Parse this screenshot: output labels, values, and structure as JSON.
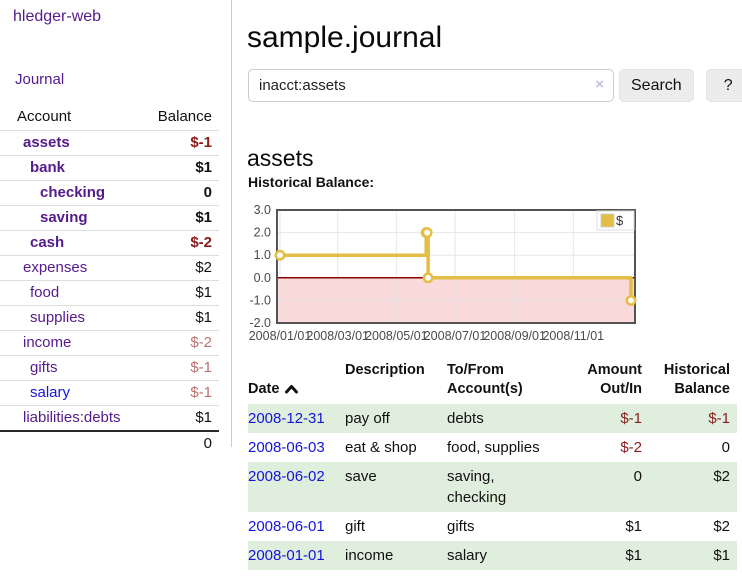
{
  "sidebar": {
    "app_title": "hledger-web",
    "journal_label": "Journal",
    "accounts_table": {
      "account_header": "Account",
      "balance_header": "Balance",
      "rows": [
        {
          "name": "assets",
          "indent": 1,
          "bold": true,
          "balance": "$-1",
          "balance_style": "neg"
        },
        {
          "name": "bank",
          "indent": 2,
          "bold": true,
          "balance": "$1",
          "balance_style": ""
        },
        {
          "name": "checking",
          "indent": 3,
          "bold": true,
          "balance": "0",
          "balance_style": ""
        },
        {
          "name": "saving",
          "indent": 3,
          "bold": true,
          "balance": "$1",
          "balance_style": ""
        },
        {
          "name": "cash",
          "indent": 2,
          "bold": true,
          "balance": "$-2",
          "balance_style": "neg"
        },
        {
          "name": "expenses",
          "indent": 1,
          "bold": false,
          "balance": "$2",
          "balance_style": ""
        },
        {
          "name": "food",
          "indent": 2,
          "bold": false,
          "balance": "$1",
          "balance_style": ""
        },
        {
          "name": "supplies",
          "indent": 2,
          "bold": false,
          "balance": "$1",
          "balance_style": ""
        },
        {
          "name": "income",
          "indent": 1,
          "bold": false,
          "balance": "$-2",
          "balance_style": "neg-soft"
        },
        {
          "name": "gifts",
          "indent": 2,
          "bold": false,
          "balance": "$-1",
          "balance_style": "neg-soft"
        },
        {
          "name": "salary",
          "indent": 2,
          "bold": false,
          "balance": "$-1",
          "balance_style": "neg-soft",
          "link": "blue"
        },
        {
          "name": "liabilities:debts",
          "indent": 1,
          "bold": false,
          "balance": "$1",
          "balance_style": ""
        }
      ],
      "total": "0"
    }
  },
  "main": {
    "title": "sample.journal",
    "search": {
      "value": "inacct:assets",
      "clear_icon": "×",
      "search_label": "Search",
      "help_label": "?"
    },
    "account_heading": "assets",
    "chart_label": "Historical Balance:"
  },
  "chart_data": {
    "type": "line",
    "step": true,
    "title": "Historical Balance",
    "series": [
      {
        "name": "$",
        "color": "#e4bd45",
        "points": [
          [
            "2008-01-01",
            1
          ],
          [
            "2008-06-01",
            2
          ],
          [
            "2008-06-02",
            2
          ],
          [
            "2008-06-03",
            0
          ],
          [
            "2008-12-31",
            -1
          ]
        ]
      }
    ],
    "x_range": [
      "2008-01-01",
      "2008-12-31"
    ],
    "ylim": [
      -2,
      3
    ],
    "y_tick_labels": [
      "3.0",
      "2.0",
      "1.0",
      "0.0",
      "-1.0",
      "-2.0"
    ],
    "x_tick_labels": [
      "2008/01/01",
      "2008/03/01",
      "2008/05/01",
      "2008/07/01",
      "2008/09/01",
      "2008/11/01"
    ],
    "x_tick_dates": [
      "2008-01-01",
      "2008-03-01",
      "2008-05-01",
      "2008-07-01",
      "2008-09-01",
      "2008-11-01"
    ],
    "legend_position": "top-right",
    "grid_on": true,
    "colors": {
      "negative_region": "#f9d9d9",
      "zero_line": "#8b0000",
      "grid": "#e6e6e6",
      "border": "#545454",
      "tick_text": "#4a4a4a"
    }
  },
  "register_table": {
    "headers": {
      "date": "Date",
      "description": "Description",
      "accounts": "To/From\nAccount(s)",
      "amount": "Amount\nOut/In",
      "balance": "Historical\nBalance"
    },
    "rows": [
      {
        "date": "2008-12-31",
        "description": "pay off",
        "accounts": "debts",
        "amount": "$-1",
        "amount_style": "neg",
        "balance": "$-1",
        "balance_style": "neg"
      },
      {
        "date": "2008-06-03",
        "description": "eat & shop",
        "accounts": "food, supplies",
        "amount": "$-2",
        "amount_style": "neg",
        "balance": "0",
        "balance_style": ""
      },
      {
        "date": "2008-06-02",
        "description": "save",
        "accounts": "saving,\nchecking",
        "amount": "0",
        "amount_style": "",
        "balance": "$2",
        "balance_style": ""
      },
      {
        "date": "2008-06-01",
        "description": "gift",
        "accounts": "gifts",
        "amount": "$1",
        "amount_style": "",
        "balance": "$2",
        "balance_style": ""
      },
      {
        "date": "2008-01-01",
        "description": "income",
        "accounts": "salary",
        "amount": "$1",
        "amount_style": "",
        "balance": "$1",
        "balance_style": ""
      }
    ]
  }
}
